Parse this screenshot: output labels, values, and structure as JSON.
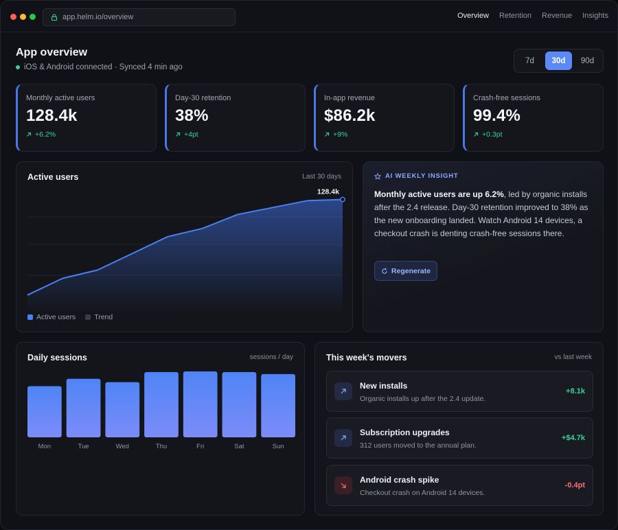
{
  "browser": {
    "url": "app.helm.io/overview",
    "nav": [
      "Overview",
      "Retention",
      "Revenue",
      "Insights"
    ],
    "active_nav": "Overview"
  },
  "header": {
    "title": "App overview",
    "status": "iOS & Android connected · Synced 4 min ago",
    "ranges": [
      "7d",
      "30d",
      "90d"
    ],
    "active_range": "30d"
  },
  "kpis": [
    {
      "label": "Monthly active users",
      "value": "128.4k",
      "delta": "+6.2%"
    },
    {
      "label": "Day-30 retention",
      "value": "38%",
      "delta": "+4pt"
    },
    {
      "label": "In-app revenue",
      "value": "$86.2k",
      "delta": "+9%"
    },
    {
      "label": "Crash-free sessions",
      "value": "99.4%",
      "delta": "+0.3pt"
    }
  ],
  "active_users_panel": {
    "title": "Active users",
    "meta": "Last 30 days",
    "end_label": "128.4k",
    "legend": [
      "Active users",
      "Trend"
    ]
  },
  "insight": {
    "tag": "AI WEEKLY INSIGHT",
    "lead": "Monthly active users are up 6.2%",
    "body": ", led by organic installs after the 2.4 release. Day-30 retention improved to 38% as the new onboarding landed. Watch Android 14 devices, a checkout crash is denting crash-free sessions there.",
    "button": "Regenerate"
  },
  "sessions_panel": {
    "title": "Daily sessions",
    "meta": "sessions / day"
  },
  "movers_panel": {
    "title": "This week's movers",
    "meta": "vs last week",
    "items": [
      {
        "title": "New installs",
        "desc": "Organic installs up after the 2.4 update.",
        "value": "+8.1k",
        "direction": "up"
      },
      {
        "title": "Subscription upgrades",
        "desc": "312 users moved to the annual plan.",
        "value": "+$4.7k",
        "direction": "up"
      },
      {
        "title": "Android crash spike",
        "desc": "Checkout crash on Android 14 devices.",
        "value": "-0.4pt",
        "direction": "down"
      }
    ]
  },
  "colors": {
    "accent": "#5b8af7",
    "positive": "#34d399",
    "negative": "#f87171"
  },
  "chart_data": [
    {
      "type": "area",
      "title": "Active users",
      "subtitle": "Last 30 days",
      "x": [
        1,
        2,
        3,
        4,
        5,
        6,
        7,
        8,
        9,
        10
      ],
      "series": [
        {
          "name": "Active users",
          "values": [
            94,
            100,
            103,
            109,
            115,
            118,
            123,
            125.5,
            128,
            128.4
          ]
        }
      ],
      "ylim": [
        90,
        132
      ],
      "annotations": [
        "128.4k"
      ],
      "grid": true,
      "legend": "bottom-left"
    },
    {
      "type": "bar",
      "title": "Daily sessions",
      "subtitle": "sessions / day",
      "categories": [
        "Mon",
        "Tue",
        "Wed",
        "Thu",
        "Fri",
        "Sat",
        "Sun"
      ],
      "values": [
        76,
        87,
        82,
        97,
        98,
        97,
        94
      ],
      "ylim": [
        0,
        100
      ],
      "grid": false
    }
  ]
}
